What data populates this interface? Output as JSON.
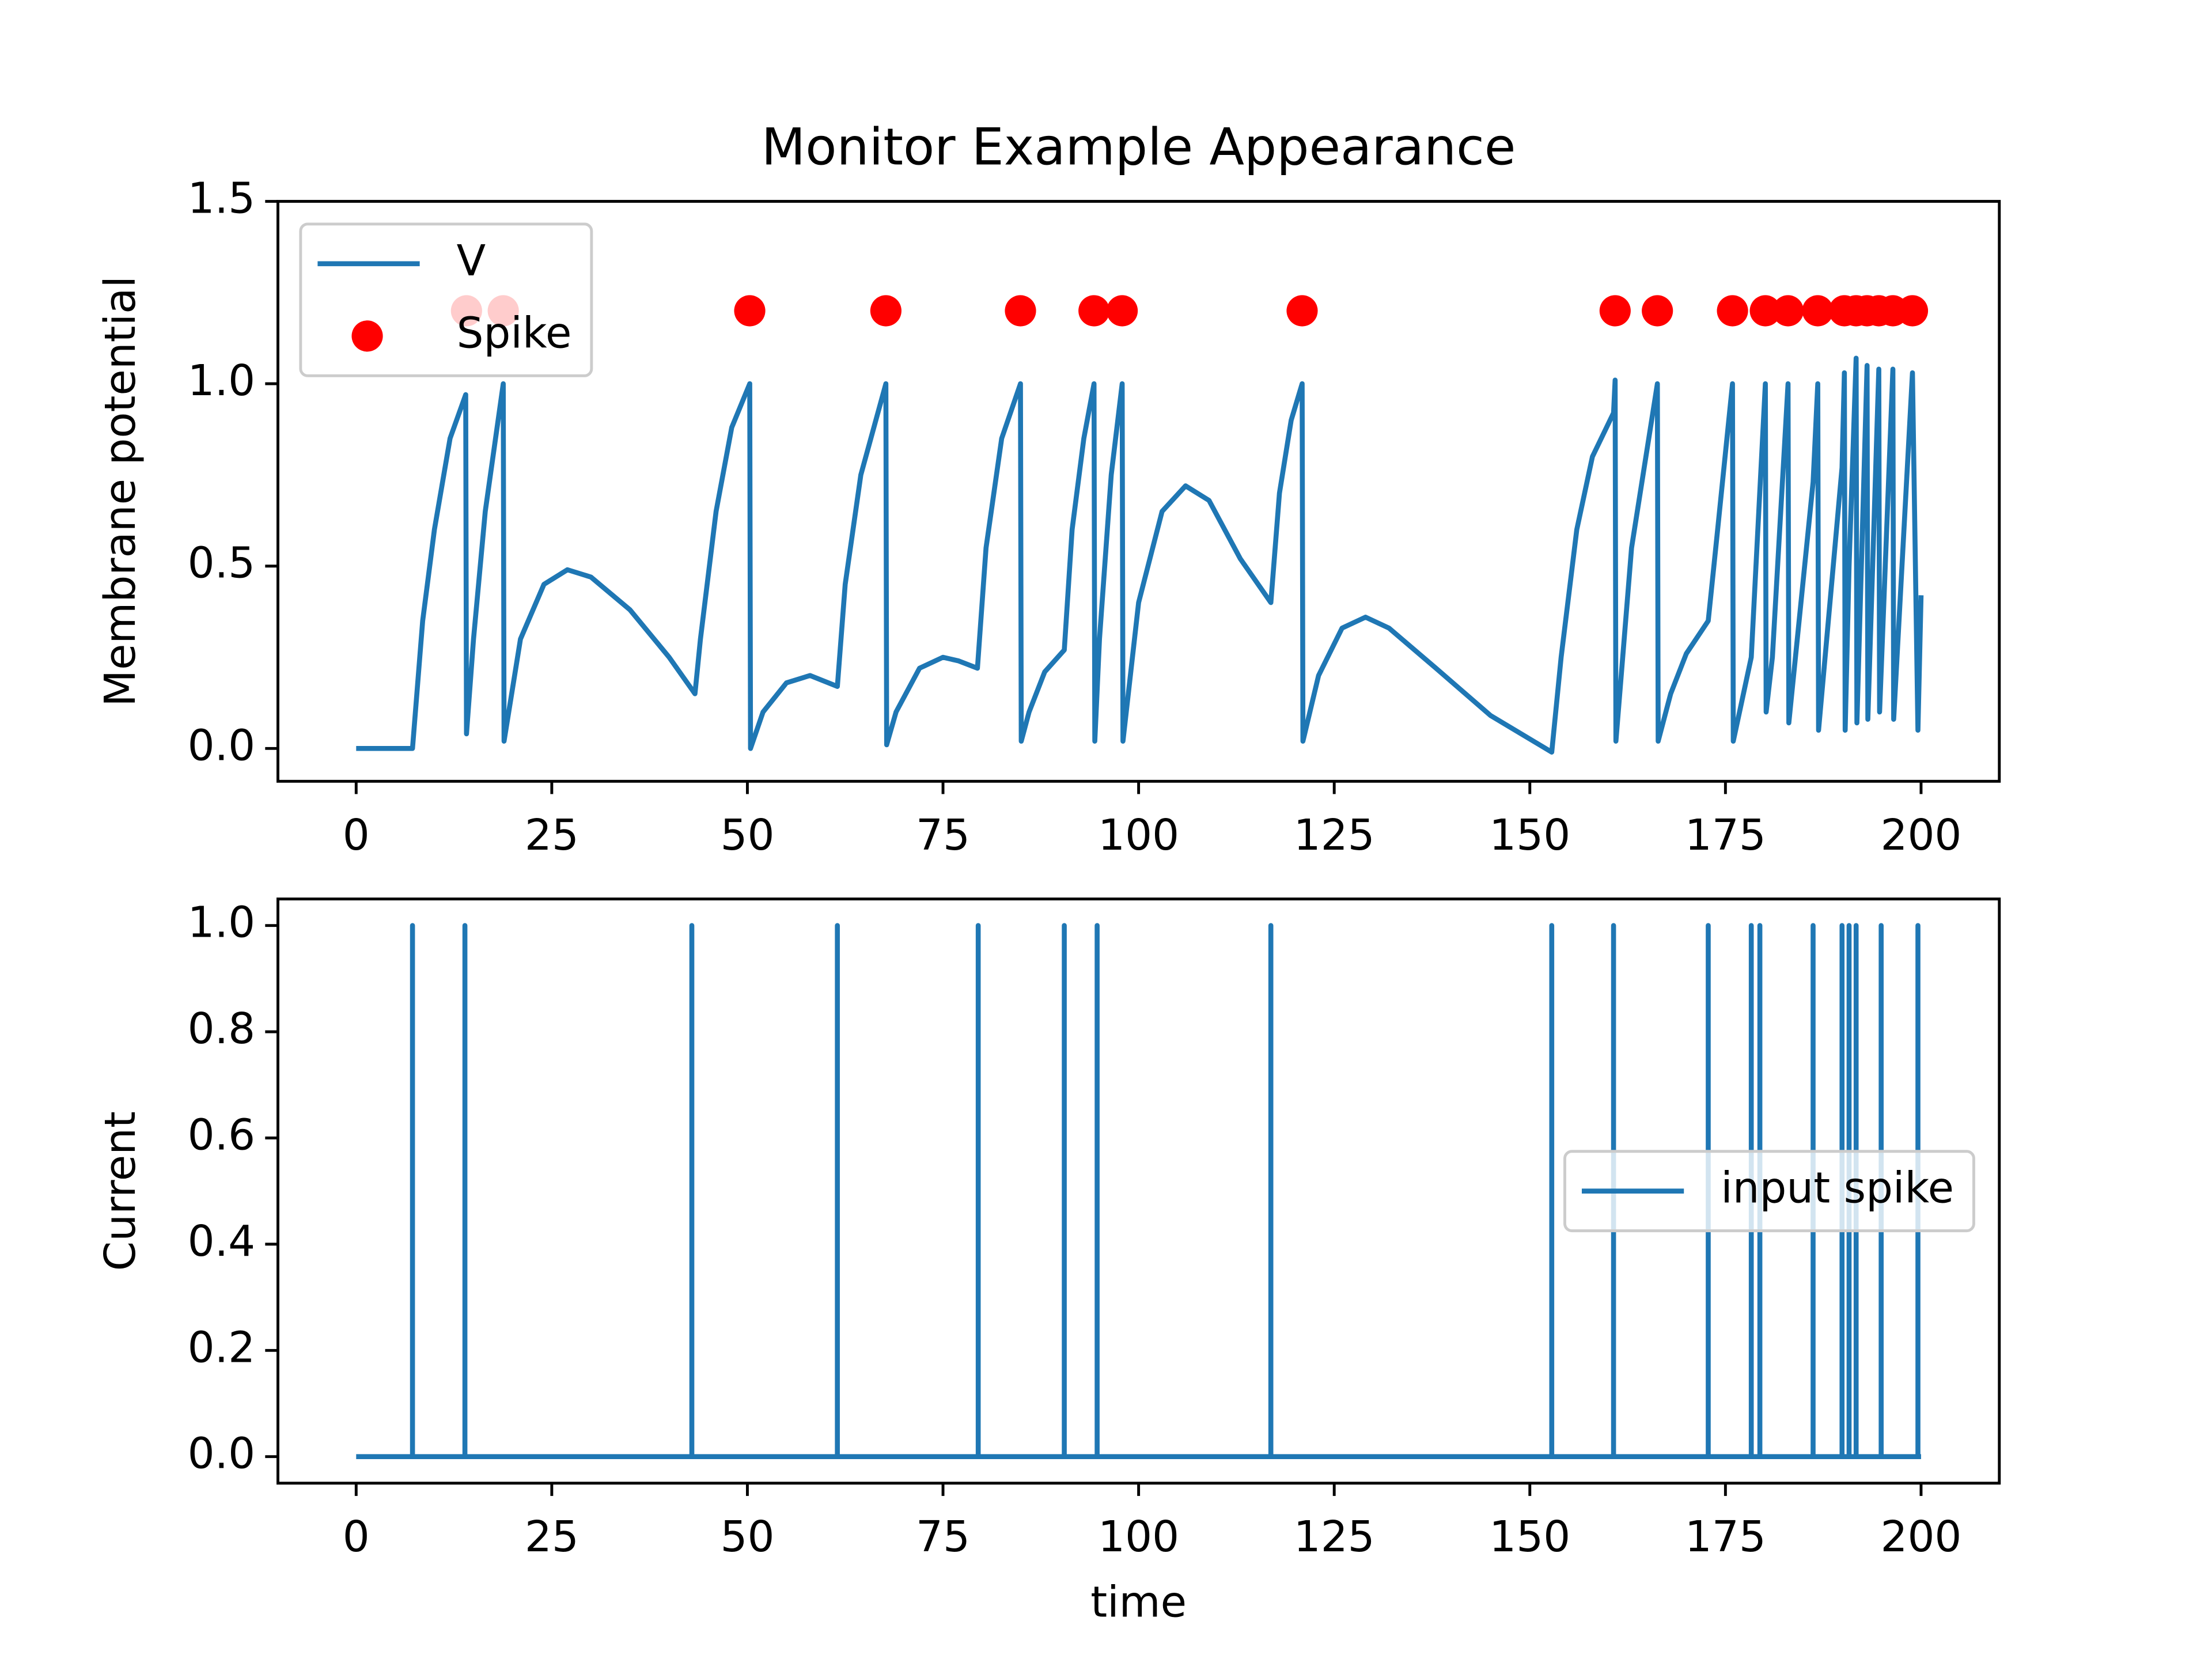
{
  "chart_data": [
    {
      "type": "line",
      "title": "Monitor Example Appearance",
      "ylabel": "Membrane potential",
      "xlim": [
        -10,
        210
      ],
      "xticks": [
        0,
        25,
        50,
        75,
        100,
        125,
        150,
        175,
        200
      ],
      "ylim": [
        -0.09,
        1.5
      ],
      "yticks": [
        {
          "value": 0,
          "label": "0.0"
        },
        0.5,
        {
          "value": 1,
          "label": "1.0"
        },
        1.5
      ],
      "legend": "upper left",
      "series": [
        {
          "name": "V",
          "type": "line",
          "color": "#1f77b4",
          "x": [
            0,
            7.2,
            8.5,
            10,
            12,
            14,
            14.1,
            15,
            16.5,
            18.8,
            18.9,
            21,
            24,
            27,
            30,
            35,
            40,
            43.3,
            44,
            46,
            48,
            50.3,
            50.4,
            52,
            55,
            58,
            61.5,
            62.5,
            64.5,
            67.7,
            67.8,
            69,
            72,
            75,
            77,
            79.4,
            80.5,
            82.5,
            84.9,
            85,
            86,
            88,
            90.5,
            91.5,
            93,
            94.3,
            94.4,
            95,
            96.5,
            97.9,
            98,
            100,
            103,
            106,
            109,
            113,
            116.9,
            118,
            119.5,
            120.9,
            121,
            123,
            126,
            129,
            132,
            138,
            145,
            152.8,
            154,
            156,
            158,
            160.7,
            160.9,
            161,
            163,
            166.3,
            166.4,
            168,
            170,
            172.8,
            174,
            175.9,
            176,
            178.3,
            180.1,
            180.2,
            181,
            183,
            183.1,
            186.2,
            186.8,
            186.9,
            189.9,
            190.2,
            190.3,
            190.8,
            191.7,
            191.8,
            193.1,
            193.2,
            194.6,
            194.7,
            196.4,
            196.5,
            198.9,
            199.6,
            200
          ],
          "values": [
            0,
            0,
            0.35,
            0.6,
            0.85,
            0.97,
            0.04,
            0.3,
            0.65,
            1.0,
            0.02,
            0.3,
            0.45,
            0.49,
            0.47,
            0.38,
            0.25,
            0.15,
            0.3,
            0.65,
            0.88,
            1.0,
            0.0,
            0.1,
            0.18,
            0.2,
            0.17,
            0.45,
            0.75,
            1.0,
            0.01,
            0.1,
            0.22,
            0.25,
            0.24,
            0.22,
            0.55,
            0.85,
            1.0,
            0.02,
            0.1,
            0.21,
            0.27,
            0.6,
            0.85,
            1.0,
            0.02,
            0.3,
            0.75,
            1.0,
            0.02,
            0.4,
            0.65,
            0.72,
            0.68,
            0.52,
            0.4,
            0.7,
            0.9,
            1.0,
            0.02,
            0.2,
            0.33,
            0.36,
            0.33,
            0.22,
            0.09,
            -0.01,
            0.25,
            0.6,
            0.8,
            0.92,
            1.01,
            0.02,
            0.55,
            1.0,
            0.02,
            0.15,
            0.26,
            0.35,
            0.6,
            1.0,
            0.02,
            0.25,
            1.0,
            0.1,
            0.25,
            1.0,
            0.07,
            0.73,
            1.0,
            0.05,
            0.77,
            1.03,
            0.05,
            0.5,
            1.07,
            0.07,
            1.05,
            0.08,
            1.04,
            0.1,
            1.04,
            0.08,
            1.03,
            0.05,
            0.42
          ]
        },
        {
          "name": "Spike",
          "type": "scatter",
          "color": "#ff0000",
          "x": [
            14.1,
            18.8,
            50.3,
            67.7,
            84.9,
            94.3,
            97.9,
            120.9,
            160.9,
            166.3,
            175.9,
            180.1,
            183,
            186.8,
            190.2,
            191.7,
            193.1,
            194.6,
            196.4,
            198.9
          ],
          "values": [
            1.2,
            1.2,
            1.2,
            1.2,
            1.2,
            1.2,
            1.2,
            1.2,
            1.2,
            1.2,
            1.2,
            1.2,
            1.2,
            1.2,
            1.2,
            1.2,
            1.2,
            1.2,
            1.2,
            1.2
          ]
        }
      ]
    },
    {
      "type": "line",
      "ylabel": "Current",
      "xlabel": "time",
      "xlim": [
        -10,
        210
      ],
      "xticks": [
        0,
        25,
        50,
        75,
        100,
        125,
        150,
        175,
        200
      ],
      "ylim": [
        -0.05,
        1.05
      ],
      "yticks": [
        {
          "value": 0,
          "label": "0.0"
        },
        0.2,
        0.4,
        0.6,
        0.8,
        {
          "value": 1,
          "label": "1.0"
        }
      ],
      "legend": "center right",
      "series": [
        {
          "name": "input spike",
          "type": "line",
          "color": "#1f77b4",
          "x": [
            0,
            7.2,
            7.2,
            7.2,
            13.9,
            13.9,
            13.9,
            42.9,
            42.9,
            42.9,
            61.5,
            61.5,
            61.5,
            79.5,
            79.5,
            79.5,
            90.5,
            90.5,
            90.5,
            94.7,
            94.7,
            94.7,
            116.9,
            116.9,
            116.9,
            152.8,
            152.8,
            152.8,
            160.7,
            160.7,
            160.7,
            172.8,
            172.8,
            172.8,
            178.3,
            178.3,
            178.3,
            179.4,
            179.4,
            179.4,
            186.2,
            186.2,
            186.2,
            189.9,
            189.9,
            189.9,
            190.8,
            190.8,
            190.8,
            191.7,
            191.7,
            191.7,
            194.9,
            194.9,
            194.9,
            199.6,
            199.6,
            199.6,
            200
          ],
          "values": [
            0,
            0,
            1,
            0,
            0,
            1,
            0,
            0,
            1,
            0,
            0,
            1,
            0,
            0,
            1,
            0,
            0,
            1,
            0,
            0,
            1,
            0,
            0,
            1,
            0,
            0,
            1,
            0,
            0,
            1,
            0,
            0,
            1,
            0,
            0,
            1,
            0,
            0,
            1,
            0,
            0,
            1,
            0,
            0,
            1,
            0,
            0,
            1,
            0,
            0,
            1,
            0,
            0,
            1,
            0,
            0,
            1,
            0,
            0
          ]
        }
      ]
    }
  ]
}
